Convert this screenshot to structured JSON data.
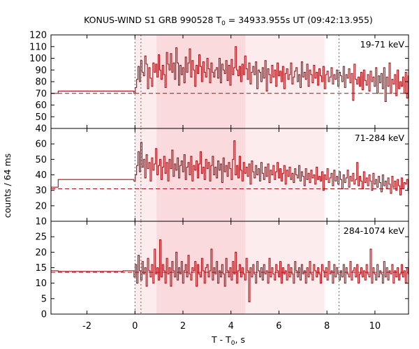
{
  "chart_data": {
    "type": "line",
    "title_prefix": "KONUS-WIND S1 GRB 990528 T",
    "title_sub": "0",
    "title_suffix": " = 34933.955s UT (09:42:13.955)",
    "xlabel_prefix": "T - T",
    "xlabel_sub": "0",
    "xlabel_suffix": ", s",
    "ylabel": "counts / 64 ms",
    "xlim": [
      -3.5,
      11.4
    ],
    "x_ticks": [
      -2,
      0,
      2,
      4,
      6,
      8,
      10
    ],
    "colors": {
      "curve": "#a50f15",
      "band_inner": "#fadadd",
      "band_outer": "#fdeced",
      "marker": "#666666"
    },
    "shaded_intervals": [
      {
        "from": 0.0,
        "to": 7.9,
        "level": "outer"
      },
      {
        "from": 0.9,
        "to": 4.6,
        "level": "inner"
      }
    ],
    "vertical_markers": [
      0.0,
      0.25,
      8.5
    ],
    "panels": [
      {
        "label": "19-71 keV",
        "ylim": [
          40,
          120
        ],
        "y_ticks": [
          40,
          50,
          60,
          70,
          80,
          90,
          100,
          110,
          120
        ],
        "background": 70,
        "pre_burst": [
          {
            "from": -3.5,
            "to": -3.2,
            "value": 70
          },
          {
            "from": -3.2,
            "to": -0.5,
            "value": 72
          },
          {
            "from": -0.5,
            "to": -0.1,
            "value": 72
          }
        ],
        "series": [
          72,
          70,
          75,
          82,
          93,
          80,
          98,
          88,
          85,
          102,
          95,
          74,
          92,
          83,
          76,
          96,
          88,
          95,
          84,
          103,
          90,
          82,
          94,
          86,
          75,
          105,
          95,
          90,
          104,
          88,
          96,
          82,
          109,
          96,
          77,
          94,
          86,
          92,
          79,
          101,
          88,
          96,
          108,
          84,
          98,
          90,
          76,
          94,
          87,
          103,
          93,
          80,
          97,
          88,
          84,
          100,
          91,
          79,
          96,
          88,
          84,
          90,
          92,
          83,
          100,
          79,
          95,
          90,
          87,
          98,
          81,
          94,
          77,
          99,
          86,
          92,
          110,
          90,
          85,
          93,
          80,
          95,
          86,
          102,
          91,
          82,
          96,
          78,
          88,
          93,
          86,
          97,
          74,
          90,
          88,
          80,
          92,
          83,
          98,
          72,
          91,
          86,
          79,
          94,
          84,
          90,
          76,
          96,
          85,
          89,
          80,
          93,
          74,
          87,
          91,
          82,
          86,
          96,
          78,
          84,
          89,
          92,
          80,
          86,
          75,
          97,
          84,
          88,
          82,
          95,
          76,
          90,
          86,
          79,
          94,
          83,
          88,
          77,
          91,
          85,
          80,
          93,
          74,
          86,
          89,
          80,
          84,
          92,
          78,
          86,
          82,
          90,
          76,
          88,
          85,
          80,
          93,
          75,
          86,
          83,
          91,
          79,
          87,
          64,
          95,
          82,
          78,
          84,
          76,
          88,
          73,
          90,
          81,
          77,
          86,
          72,
          89,
          80,
          84,
          76,
          92,
          70,
          85,
          79,
          87,
          74,
          92,
          63,
          84,
          76,
          96,
          70,
          82,
          78,
          86,
          68,
          90,
          74,
          80,
          76,
          84,
          70,
          88,
          66,
          85,
          76,
          79,
          72,
          90,
          67,
          83,
          75,
          80,
          72,
          86,
          62,
          80,
          77,
          84,
          70,
          88
        ]
      },
      {
        "label": "71-284 keV",
        "ylim": [
          10,
          70
        ],
        "y_ticks": [
          10,
          20,
          30,
          40,
          50,
          60
        ],
        "background": 31,
        "pre_burst": [
          {
            "from": -3.5,
            "to": -3.2,
            "value": 32
          },
          {
            "from": -3.2,
            "to": -0.5,
            "value": 37
          },
          {
            "from": -0.5,
            "to": -0.1,
            "value": 37
          }
        ],
        "series": [
          37,
          36,
          40,
          46,
          55,
          42,
          61,
          45,
          50,
          38,
          53,
          44,
          48,
          36,
          51,
          43,
          47,
          57,
          40,
          46,
          50,
          37,
          45,
          52,
          41,
          48,
          36,
          50,
          44,
          56,
          39,
          47,
          43,
          51,
          38,
          46,
          49,
          42,
          53,
          37,
          45,
          48,
          40,
          52,
          36,
          46,
          43,
          49,
          38,
          47,
          55,
          41,
          45,
          37,
          50,
          44,
          48,
          36,
          46,
          52,
          40,
          45,
          38,
          49,
          43,
          47,
          35,
          51,
          42,
          46,
          39,
          48,
          44,
          37,
          50,
          62,
          40,
          46,
          38,
          52,
          43,
          36,
          48,
          41,
          45,
          39,
          47,
          34,
          49,
          42,
          38,
          46,
          40,
          44,
          36,
          48,
          41,
          37,
          45,
          39,
          47,
          35,
          43,
          40,
          46,
          37,
          42,
          48,
          38,
          44,
          36,
          41,
          46,
          34,
          43,
          39,
          45,
          37,
          41,
          35,
          44,
          40,
          38,
          46,
          36,
          42,
          39,
          33,
          44,
          37,
          41,
          35,
          43,
          38,
          40,
          34,
          45,
          37,
          39,
          36,
          42,
          30,
          40,
          37,
          44,
          35,
          38,
          41,
          33,
          43,
          36,
          39,
          34,
          42,
          37,
          31,
          40,
          35,
          38,
          43,
          32,
          39,
          36,
          41,
          34,
          37,
          48,
          33,
          39,
          36,
          31,
          42,
          35,
          38,
          33,
          40,
          36,
          30,
          41,
          34,
          37,
          32,
          39,
          35,
          29,
          40,
          33,
          36,
          31,
          38,
          34,
          28,
          39,
          32,
          36,
          30,
          37,
          33,
          27,
          38,
          31,
          35,
          34,
          37,
          30,
          36,
          32,
          28,
          38,
          31,
          35,
          33,
          36,
          29,
          34,
          32,
          37,
          30,
          35,
          33
        ]
      },
      {
        "label": "284-1074 keV",
        "ylim": [
          0,
          30
        ],
        "y_ticks": [
          0,
          5,
          10,
          15,
          20,
          25
        ],
        "background": 13.5,
        "pre_burst": [
          {
            "from": -3.5,
            "to": -3.2,
            "value": 14
          },
          {
            "from": -3.2,
            "to": -0.5,
            "value": 13.8
          },
          {
            "from": -0.5,
            "to": -0.1,
            "value": 14
          }
        ],
        "series": [
          14,
          12,
          16,
          10,
          19,
          14,
          11,
          17,
          13,
          15,
          9,
          18,
          14,
          12,
          16,
          10,
          21,
          13,
          15,
          11,
          24,
          12,
          16,
          14,
          10,
          18,
          13,
          15,
          9,
          17,
          14,
          12,
          20,
          11,
          15,
          13,
          17,
          10,
          14,
          16,
          12,
          19,
          13,
          11,
          15,
          14,
          17,
          9,
          16,
          13,
          12,
          18,
          14,
          10,
          15,
          16,
          12,
          14,
          21,
          11,
          15,
          13,
          17,
          10,
          14,
          12,
          16,
          13,
          9,
          18,
          14,
          12,
          15,
          11,
          17,
          13,
          20,
          10,
          14,
          16,
          12,
          15,
          13,
          11,
          18,
          14,
          4,
          15,
          12,
          16,
          13,
          10,
          17,
          14,
          12,
          15,
          11,
          16,
          13,
          14,
          10,
          18,
          12,
          15,
          13,
          11,
          16,
          14,
          12,
          17,
          10,
          15,
          13,
          14,
          11,
          16,
          12,
          15,
          13,
          10,
          17,
          14,
          12,
          15,
          11,
          16,
          13,
          14,
          10,
          15,
          12,
          17,
          13,
          11,
          16,
          14,
          12,
          15,
          13,
          10,
          16,
          14,
          12,
          15,
          11,
          17,
          13,
          14,
          10,
          16,
          12,
          15,
          13,
          11,
          14,
          12,
          16,
          10,
          15,
          13,
          12,
          17,
          11,
          14,
          15,
          12,
          16,
          10,
          13,
          15,
          12,
          14,
          11,
          16,
          13,
          12,
          21,
          10,
          15,
          13,
          11,
          16,
          12,
          14,
          13,
          10,
          17,
          12,
          15,
          11,
          14,
          13,
          16,
          10,
          14,
          12,
          15,
          11,
          13,
          16,
          12,
          14,
          10,
          15,
          13,
          12,
          18,
          11,
          14,
          13,
          15,
          10,
          14,
          12,
          16,
          11,
          13,
          15,
          12,
          14
        ]
      }
    ],
    "series_start": -0.1,
    "bin_width": 0.05625
  }
}
